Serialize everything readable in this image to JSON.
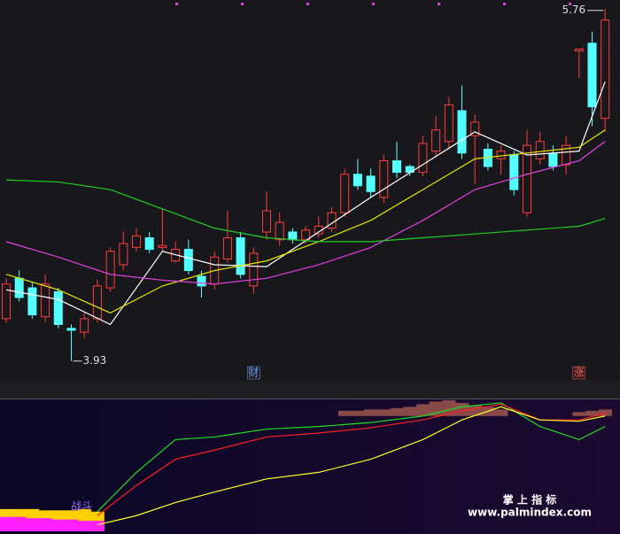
{
  "chart_data": [
    {
      "type": "candlestick",
      "ylim": [
        3.8,
        5.8
      ],
      "up_color": "#ff3c3c",
      "down_color": "#54ffff",
      "open": [
        4.15,
        4.36,
        4.31,
        4.16,
        4.29,
        4.1,
        4.08,
        4.15,
        4.31,
        4.43,
        4.52,
        4.57,
        4.52,
        4.45,
        4.51,
        4.37,
        4.33,
        4.46,
        4.57,
        4.32,
        4.6,
        4.56,
        4.6,
        4.56,
        4.59,
        4.62,
        4.7,
        4.9,
        4.89,
        4.78,
        4.97,
        4.94,
        4.91,
        5.02,
        5.07,
        5.23,
        5.1,
        5.03,
        4.98,
        5.0,
        4.7,
        4.98,
        5.01,
        4.95,
        5.54,
        5.58,
        5.19
      ],
      "close": [
        4.33,
        4.26,
        4.17,
        4.33,
        4.12,
        4.09,
        4.15,
        4.32,
        4.5,
        4.54,
        4.58,
        4.51,
        4.53,
        4.51,
        4.4,
        4.32,
        4.47,
        4.57,
        4.38,
        4.49,
        4.71,
        4.65,
        4.56,
        4.61,
        4.63,
        4.7,
        4.9,
        4.84,
        4.81,
        4.97,
        4.91,
        4.91,
        5.06,
        5.13,
        5.26,
        5.01,
        5.17,
        4.94,
        5.02,
        4.82,
        5.05,
        5.07,
        4.94,
        5.05,
        5.55,
        5.25,
        5.7
      ],
      "high": [
        4.36,
        4.4,
        4.34,
        4.38,
        4.31,
        4.12,
        4.18,
        4.35,
        4.52,
        4.6,
        4.62,
        4.6,
        4.72,
        4.55,
        4.56,
        4.4,
        4.5,
        4.71,
        4.6,
        4.52,
        4.81,
        4.7,
        4.62,
        4.63,
        4.68,
        4.73,
        4.93,
        4.98,
        4.93,
        5.0,
        5.07,
        4.95,
        5.1,
        5.2,
        5.3,
        5.36,
        5.21,
        5.06,
        5.05,
        5.02,
        5.13,
        5.12,
        5.05,
        5.1,
        5.55,
        5.64,
        5.76
      ],
      "low": [
        4.13,
        4.24,
        4.15,
        4.13,
        4.1,
        3.93,
        4.05,
        4.13,
        4.29,
        4.4,
        4.5,
        4.49,
        4.5,
        4.44,
        4.38,
        4.26,
        4.3,
        4.44,
        4.36,
        4.28,
        4.56,
        4.53,
        4.54,
        4.54,
        4.57,
        4.6,
        4.68,
        4.82,
        4.78,
        4.75,
        4.88,
        4.89,
        4.89,
        4.99,
        5.03,
        4.98,
        4.85,
        4.92,
        4.9,
        4.79,
        4.68,
        4.95,
        4.92,
        4.9,
        5.4,
        5.15,
        5.12
      ],
      "lines": [
        {
          "color": "#ffffff",
          "x": [
            0,
            4,
            8,
            12,
            16,
            20,
            24,
            28,
            32,
            36,
            40,
            44,
            46
          ],
          "values": [
            4.3,
            4.25,
            4.12,
            4.5,
            4.43,
            4.42,
            4.6,
            4.78,
            4.95,
            5.12,
            5.0,
            5.02,
            5.38
          ]
        },
        {
          "color": "#e6e600",
          "x": [
            0,
            4,
            8,
            12,
            16,
            20,
            24,
            28,
            32,
            36,
            40,
            44,
            46
          ],
          "values": [
            4.38,
            4.3,
            4.18,
            4.32,
            4.4,
            4.45,
            4.55,
            4.66,
            4.82,
            4.98,
            5.01,
            5.04,
            5.13
          ]
        },
        {
          "color": "#e040e0",
          "x": [
            0,
            4,
            8,
            12,
            16,
            20,
            24,
            28,
            32,
            36,
            40,
            44,
            46
          ],
          "values": [
            4.55,
            4.47,
            4.38,
            4.35,
            4.33,
            4.36,
            4.43,
            4.52,
            4.66,
            4.82,
            4.9,
            4.97,
            5.07
          ]
        },
        {
          "color": "#20d020",
          "x": [
            0,
            4,
            8,
            12,
            16,
            20,
            24,
            28,
            32,
            36,
            40,
            44,
            46
          ],
          "values": [
            4.87,
            4.86,
            4.82,
            4.72,
            4.62,
            4.57,
            4.55,
            4.55,
            4.57,
            4.59,
            4.61,
            4.63,
            4.67
          ]
        }
      ],
      "markers": [
        {
          "text": "财",
          "x": 19,
          "color": "#5aa0ff"
        },
        {
          "text": "涨",
          "x": 44,
          "color": "#ff6060"
        }
      ]
    },
    {
      "type": "indicator",
      "ylim": [
        0,
        100
      ],
      "lines": [
        {
          "color": "#20e020",
          "x": [
            7,
            10,
            13,
            16,
            20,
            24,
            28,
            32,
            35,
            38,
            41,
            44,
            46
          ],
          "values": [
            15,
            45,
            70,
            72,
            78,
            80,
            83,
            88,
            95,
            98,
            80,
            70,
            80
          ]
        },
        {
          "color": "#ff2020",
          "x": [
            7,
            10,
            13,
            16,
            20,
            24,
            28,
            32,
            35,
            38,
            41,
            44,
            46
          ],
          "values": [
            12,
            35,
            55,
            62,
            72,
            75,
            79,
            85,
            92,
            97,
            85,
            85,
            90
          ]
        },
        {
          "color": "#ffff30",
          "x": [
            7,
            10,
            13,
            16,
            20,
            24,
            28,
            32,
            35,
            38,
            41,
            44,
            46
          ],
          "values": [
            5,
            12,
            22,
            30,
            40,
            45,
            55,
            70,
            85,
            95,
            85,
            84,
            88
          ]
        }
      ],
      "hist": {
        "color": "#8a4a48",
        "base": 88,
        "x": [
          26,
          27,
          28,
          29,
          30,
          31,
          32,
          33,
          34,
          35,
          36,
          37,
          38,
          44,
          45,
          46
        ],
        "values": [
          92,
          92,
          93,
          93,
          94,
          95,
          97,
          99,
          100,
          98,
          96,
          95,
          93,
          91,
          92,
          93
        ]
      },
      "blocks": [
        {
          "color": "#ffd000",
          "x": [
            0,
            1,
            2,
            3,
            4,
            5,
            6,
            7
          ],
          "values": [
            17,
            17,
            17,
            16,
            16,
            16,
            17,
            15
          ]
        },
        {
          "color": "#ff20ff",
          "x": [
            0,
            1,
            2,
            3,
            4,
            5,
            6,
            7
          ],
          "values": [
            11,
            11,
            10,
            10,
            9,
            9,
            8,
            8
          ]
        }
      ],
      "label": "战斗",
      "watermark": [
        "掌 上 指 标",
        "www.palmindex.com"
      ]
    }
  ]
}
